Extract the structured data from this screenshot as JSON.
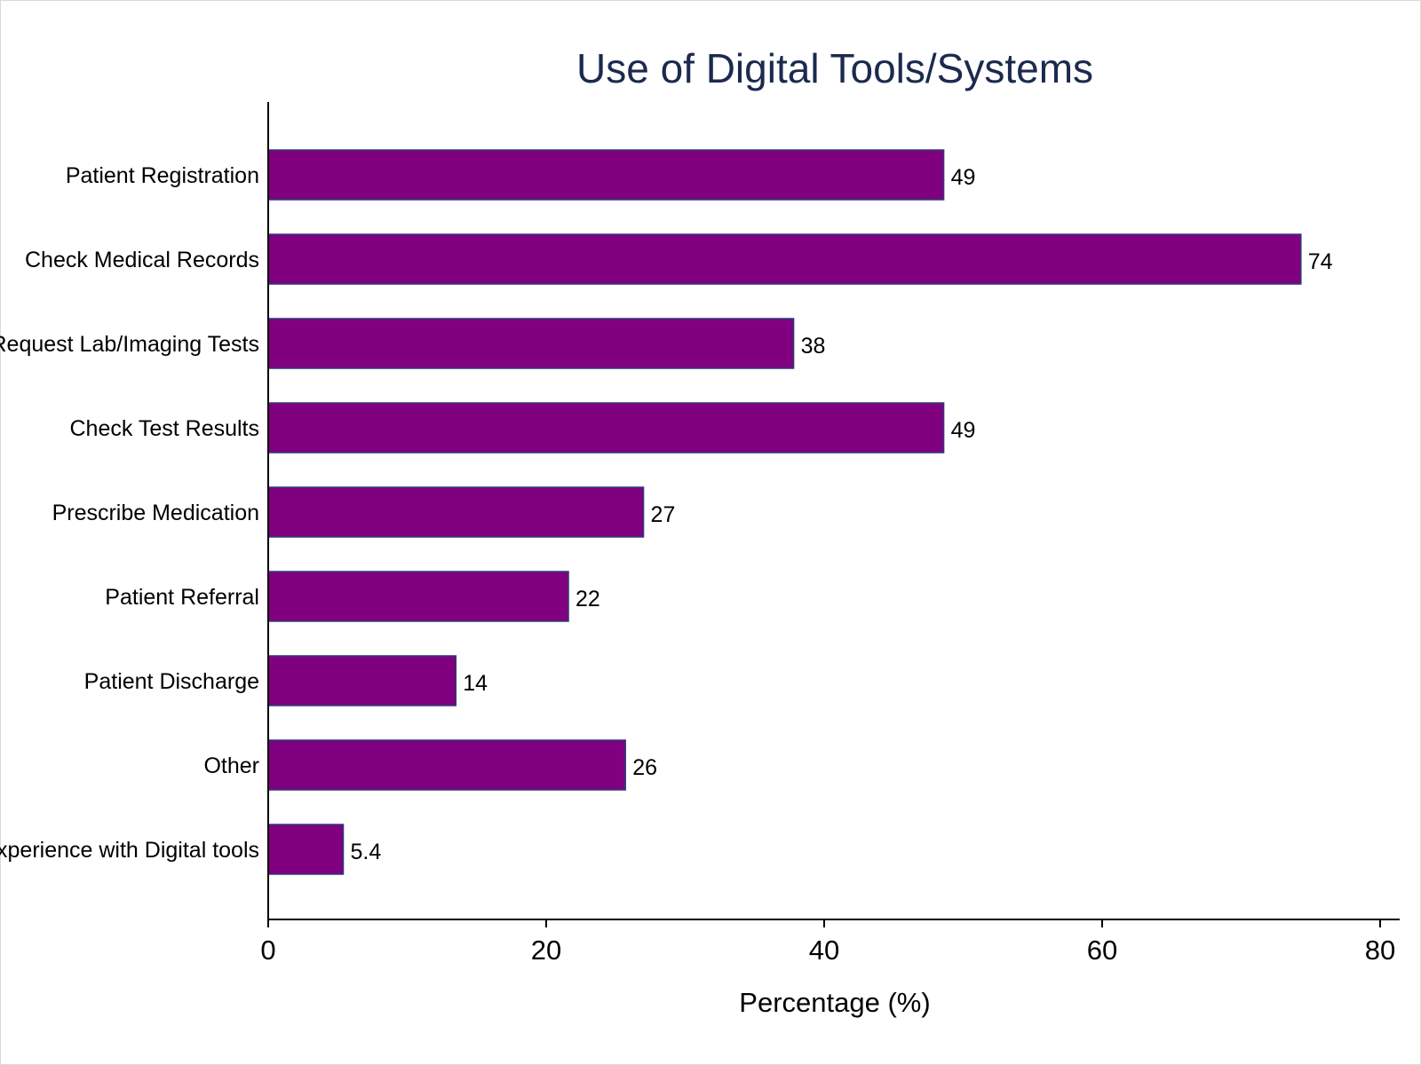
{
  "chart_data": {
    "type": "bar",
    "orientation": "horizontal",
    "title": "Use of Digital Tools/Systems",
    "xlabel": "Percentage (%)",
    "ylabel": "",
    "categories": [
      "Patient Registration",
      "Check Medical Records",
      "Request Lab/Imaging Tests",
      "Check Test Results",
      "Prescribe Medication",
      "Patient Referral",
      "Patient Discharge",
      "Other",
      "No experience with Digital tools"
    ],
    "values": [
      48.6,
      74.3,
      37.8,
      48.6,
      27.0,
      21.6,
      13.5,
      25.7,
      5.4
    ],
    "value_labels": [
      "49",
      "74",
      "38",
      "49",
      "27",
      "22",
      "14",
      "26",
      "5.4"
    ],
    "xlim": [
      0,
      80
    ],
    "xticks": [
      0,
      20,
      40,
      60,
      80
    ],
    "xtick_labels": [
      "0",
      "20",
      "40",
      "60",
      "80"
    ],
    "grid": false,
    "legend": "none",
    "colors": {
      "bar_fill": "#800080",
      "bar_edge": "#2d3a7a",
      "title": "#1b2a4e",
      "axis": "#000000"
    }
  }
}
